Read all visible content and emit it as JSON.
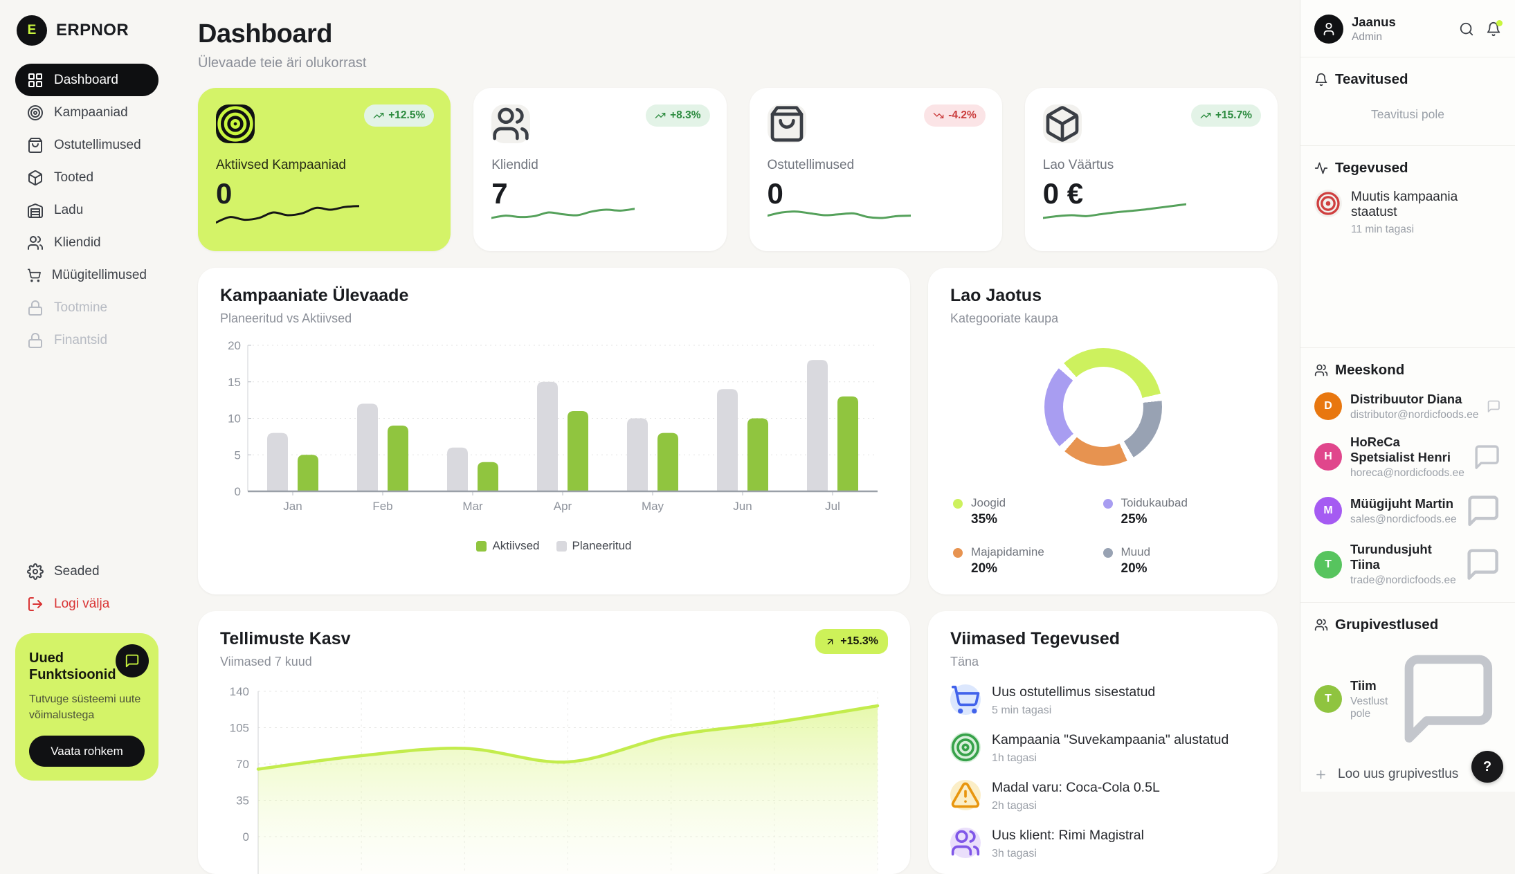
{
  "brand": {
    "initial": "E",
    "name": "ERPNOR"
  },
  "nav": {
    "items": [
      {
        "label": "Dashboard",
        "icon": "layout-grid",
        "state": "active"
      },
      {
        "label": "Kampaaniad",
        "icon": "target",
        "state": "normal"
      },
      {
        "label": "Ostutellimused",
        "icon": "shopping-bag",
        "state": "normal"
      },
      {
        "label": "Tooted",
        "icon": "package",
        "state": "normal"
      },
      {
        "label": "Ladu",
        "icon": "warehouse",
        "state": "normal"
      },
      {
        "label": "Kliendid",
        "icon": "users",
        "state": "normal"
      },
      {
        "label": "Müügitellimused",
        "icon": "shopping-cart",
        "state": "normal"
      },
      {
        "label": "Tootmine",
        "icon": "lock",
        "state": "locked"
      },
      {
        "label": "Finantsid",
        "icon": "lock",
        "state": "locked"
      }
    ],
    "settings": "Seaded",
    "logout": "Logi välja"
  },
  "promo": {
    "title": "Uued Funktsioonid",
    "text": "Tutvuge süsteemi uute võimalustega",
    "button": "Vaata rohkem"
  },
  "header": {
    "title": "Dashboard",
    "subtitle": "Ülevaade teie äri olukorrast"
  },
  "stat_cards": [
    {
      "label": "Aktiivsed Kampaaniad",
      "value": "0",
      "badge": "+12.5%",
      "trend": "up",
      "icon": "target",
      "highlight": true,
      "spark_color": "#151515",
      "sparkline": [
        2.0,
        3.2,
        2.6,
        3.0,
        4.2,
        3.6,
        4.0,
        5.2,
        4.8,
        5.4,
        5.6
      ]
    },
    {
      "label": "Kliendid",
      "value": "7",
      "badge": "+8.3%",
      "trend": "up",
      "icon": "users",
      "highlight": false,
      "spark_color": "#55a15b",
      "sparkline": [
        3.0,
        3.5,
        3.2,
        3.4,
        4.2,
        3.8,
        3.6,
        4.4,
        4.8,
        4.6,
        5.0
      ]
    },
    {
      "label": "Ostutellimused",
      "value": "0",
      "badge": "-4.2%",
      "trend": "down",
      "icon": "shopping-bag",
      "highlight": false,
      "spark_color": "#55a15b",
      "sparkline": [
        3.5,
        4.2,
        4.4,
        4.0,
        3.6,
        3.8,
        4.0,
        3.2,
        3.0,
        3.4,
        3.5
      ]
    },
    {
      "label": "Lao Väärtus",
      "value": "0 €",
      "badge": "+15.7%",
      "trend": "up",
      "icon": "package",
      "highlight": false,
      "spark_color": "#55a15b",
      "sparkline": [
        3.0,
        3.4,
        3.6,
        3.4,
        3.8,
        4.2,
        4.5,
        4.8,
        5.2,
        5.6,
        6.0
      ]
    }
  ],
  "chart_data": [
    {
      "type": "bar",
      "title": "Kampaaniate Ülevaade",
      "subtitle": "Planeeritud vs Aktiivsed",
      "categories": [
        "Jan",
        "Feb",
        "Mar",
        "Apr",
        "May",
        "Jun",
        "Jul"
      ],
      "series": [
        {
          "name": "Planeeritud",
          "color": "#d9d9de",
          "values": [
            8,
            12,
            6,
            15,
            10,
            14,
            18
          ]
        },
        {
          "name": "Aktiivsed",
          "color": "#90c53f",
          "values": [
            5,
            9,
            4,
            11,
            8,
            10,
            13
          ]
        }
      ],
      "legend": [
        {
          "label": "Aktiivsed",
          "color": "#90c53f"
        },
        {
          "label": "Planeeritud",
          "color": "#d9d9de"
        }
      ],
      "ylim": [
        0,
        20
      ],
      "yticks": [
        0,
        5,
        10,
        15,
        20
      ],
      "grid": "dotted-horizontal",
      "legend_position": "bottom-center"
    },
    {
      "type": "donut",
      "title": "Lao Jaotus",
      "subtitle": "Kategooriate kaupa",
      "segments": [
        {
          "label": "Joogid",
          "value": 35,
          "color": "#cdf15e"
        },
        {
          "label": "Toidukaubad",
          "value": 25,
          "color": "#a89df1"
        },
        {
          "label": "Majapidamine",
          "value": 20,
          "color": "#e79350"
        },
        {
          "label": "Muud",
          "value": 20,
          "color": "#98a2b3"
        }
      ],
      "draw_sequence": [
        0,
        3,
        2,
        1
      ],
      "start_angle_deg": -42,
      "legend_position": "bottom-grid"
    },
    {
      "type": "area",
      "title": "Tellimuste Kasv",
      "subtitle": "Viimased 7 kuud",
      "badge": "+15.3%",
      "x_points": 7,
      "values": [
        65,
        78,
        85,
        72,
        97,
        110,
        126
      ],
      "ylim": [
        0,
        140
      ],
      "yticks": [
        140,
        105,
        70,
        35,
        0
      ],
      "line_color": "#c3ec4d",
      "grid": "dashed"
    }
  ],
  "activities": {
    "title": "Viimased Tegevused",
    "subtitle": "Täna",
    "items": [
      {
        "icon": "shopping-cart",
        "bg": "#dce7fd",
        "fg": "#4263eb",
        "title": "Uus ostutellimus sisestatud",
        "time": "5 min tagasi"
      },
      {
        "icon": "target",
        "bg": "#d9f0dc",
        "fg": "#37a24a",
        "title": "Kampaania \"Suvekampaania\" alustatud",
        "time": "1h tagasi"
      },
      {
        "icon": "alert-triangle",
        "bg": "#fbeec7",
        "fg": "#e8960f",
        "title": "Madal varu: Coca-Cola 0.5L",
        "time": "2h tagasi"
      },
      {
        "icon": "users",
        "bg": "#eadffb",
        "fg": "#8057e8",
        "title": "Uus klient: Rimi Magistral",
        "time": "3h tagasi"
      }
    ]
  },
  "right_panel": {
    "user": {
      "name": "Jaanus",
      "role": "Admin"
    },
    "notifications": {
      "title": "Teavitused",
      "empty": "Teavitusi pole"
    },
    "activity_feed": {
      "title": "Tegevused",
      "items": [
        {
          "title": "Muutis kampaania staatust",
          "time": "11 min tagasi"
        }
      ]
    },
    "team": {
      "title": "Meeskond",
      "members": [
        {
          "initial": "D",
          "color": "#e8770f",
          "name": "Distribuutor Diana",
          "email": "distributor@nordicfoods.ee"
        },
        {
          "initial": "H",
          "color": "#e0468c",
          "name": "HoReCa Spetsialist Henri",
          "email": "horeca@nordicfoods.ee"
        },
        {
          "initial": "M",
          "color": "#a55bf2",
          "name": "Müügijuht Martin",
          "email": "sales@nordicfoods.ee"
        },
        {
          "initial": "T",
          "color": "#57c45e",
          "name": "Turundusjuht Tiina",
          "email": "trade@nordicfoods.ee"
        }
      ]
    },
    "groups": {
      "title": "Grupivestlused",
      "items": [
        {
          "initial": "T",
          "color": "#8fc43f",
          "name": "Tiim",
          "status": "Vestlust pole"
        }
      ],
      "new_label": "Loo uus grupivestlus"
    },
    "help": "?"
  }
}
